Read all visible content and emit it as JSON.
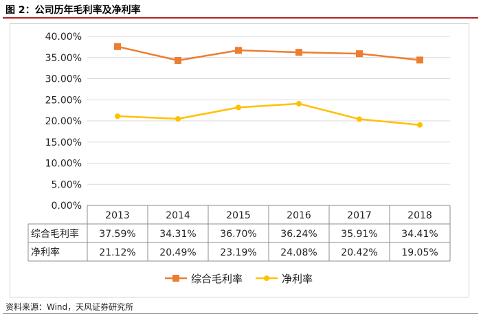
{
  "figure": {
    "title": "图 2：公司历年毛利率及净利率",
    "source": "资料来源：Wind，天风证券研究所"
  },
  "chart_data": {
    "type": "line",
    "title": "公司历年毛利率及净利率",
    "categories": [
      "2013",
      "2014",
      "2015",
      "2016",
      "2017",
      "2018"
    ],
    "series": [
      {
        "name": "综合毛利率",
        "values": [
          37.59,
          34.31,
          36.7,
          36.24,
          35.91,
          34.41
        ],
        "labels": [
          "37.59%",
          "34.31%",
          "36.70%",
          "36.24%",
          "35.91%",
          "34.41%"
        ],
        "color": "#ed7d31",
        "marker": "square"
      },
      {
        "name": "净利率",
        "values": [
          21.12,
          20.49,
          23.19,
          24.08,
          20.42,
          19.05
        ],
        "labels": [
          "21.12%",
          "20.49%",
          "23.19%",
          "24.08%",
          "20.42%",
          "19.05%"
        ],
        "color": "#ffc000",
        "marker": "circle"
      }
    ],
    "y_ticks": [
      "0.00%",
      "5.00%",
      "10.00%",
      "15.00%",
      "20.00%",
      "25.00%",
      "30.00%",
      "35.00%",
      "40.00%"
    ],
    "ylim": [
      0,
      40
    ],
    "gridlines": true,
    "data_table": true,
    "legend": "bottom"
  }
}
